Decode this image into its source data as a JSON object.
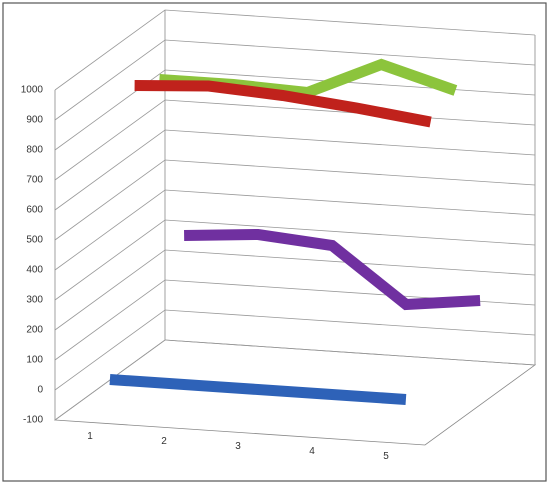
{
  "chart_data": {
    "type": "line",
    "categories": [
      "1",
      "2",
      "3",
      "4",
      "5"
    ],
    "series": [
      {
        "color": "#2e62b8",
        "values": [
          0,
          0,
          0,
          0,
          0
        ]
      },
      {
        "color": "#c0221c",
        "values": [
          920,
          935,
          920,
          895,
          865
        ]
      },
      {
        "color": "#8cc43c",
        "values": [
          880,
          880,
          870,
          980,
          910
        ]
      },
      {
        "color": "#7030a0",
        "values": [
          300,
          320,
          300,
          120,
          150
        ]
      }
    ],
    "ylim": [
      -100,
      1000
    ],
    "yticks": [
      -100,
      0,
      100,
      200,
      300,
      400,
      500,
      600,
      700,
      800,
      900,
      1000
    ],
    "grid": true
  }
}
